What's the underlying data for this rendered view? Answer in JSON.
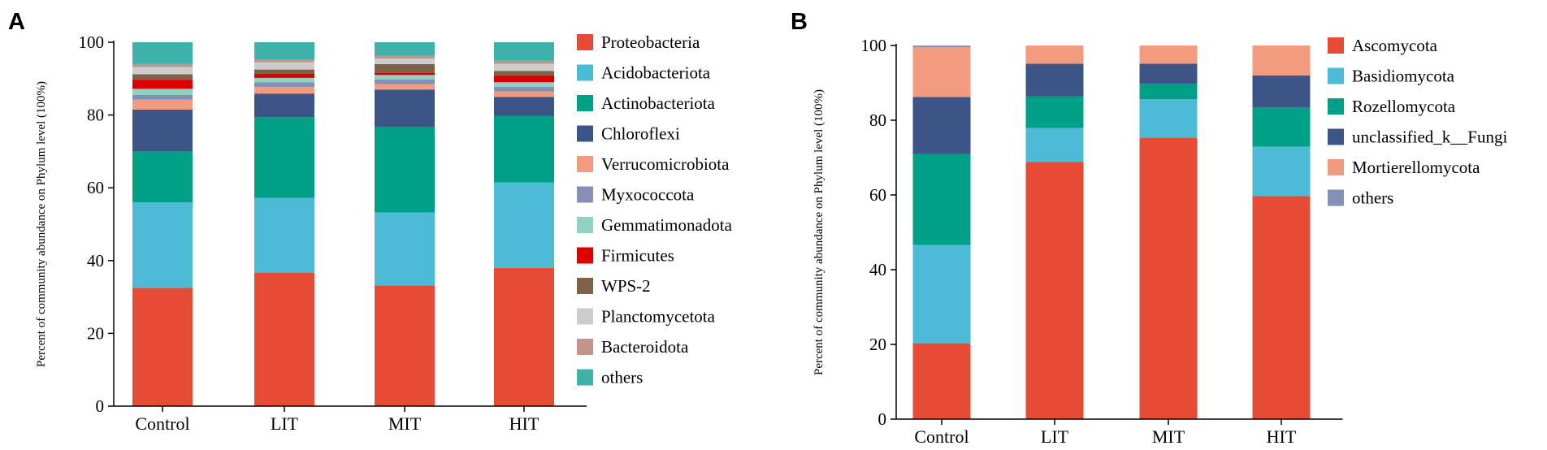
{
  "chart_data": [
    {
      "panel_label": "A",
      "type": "bar",
      "stacked": true,
      "categories": [
        "Control",
        "LIT",
        "MIT",
        "HIT"
      ],
      "ylabel": "Percent of community abundance on Phylum level (100%)",
      "xlabel": "",
      "ylim": [
        0,
        100
      ],
      "yticks": [
        "0",
        "20",
        "40",
        "60",
        "80",
        "100"
      ],
      "legend_position": "right",
      "series": [
        {
          "name": "Proteobacteria",
          "color": "#e64b35",
          "values": [
            32.5,
            36.7,
            33.2,
            38.0
          ]
        },
        {
          "name": "Acidobacteriota",
          "color": "#4dbbd5",
          "values": [
            23.5,
            20.5,
            20.0,
            23.5
          ]
        },
        {
          "name": "Actinobacteriota",
          "color": "#00a087",
          "values": [
            14.0,
            22.2,
            23.5,
            18.3
          ]
        },
        {
          "name": "Chloroflexi",
          "color": "#3c5488",
          "values": [
            11.5,
            6.5,
            10.3,
            5.2
          ]
        },
        {
          "name": "Verrucomicrobiota",
          "color": "#f39b7f",
          "values": [
            2.7,
            1.8,
            1.5,
            1.5
          ]
        },
        {
          "name": "Myxococcota",
          "color": "#8491b4",
          "values": [
            1.3,
            1.3,
            1.3,
            1.3
          ]
        },
        {
          "name": "Gemmatimonadota",
          "color": "#91d1c2",
          "values": [
            1.7,
            1.2,
            1.2,
            1.2
          ]
        },
        {
          "name": "Firmicutes",
          "color": "#dc0000",
          "values": [
            2.5,
            1.1,
            0.6,
            1.9
          ]
        },
        {
          "name": "WPS-2",
          "color": "#7e6148",
          "values": [
            1.5,
            1.2,
            2.4,
            1.2
          ]
        },
        {
          "name": "Planctomycetota",
          "color": "#cccccc",
          "values": [
            2.0,
            2.0,
            1.5,
            2.0
          ]
        },
        {
          "name": "Bacteroidota",
          "color": "#c2948a",
          "values": [
            0.8,
            0.8,
            0.8,
            0.8
          ]
        },
        {
          "name": "others",
          "color": "#3fb1ab",
          "values": [
            6.0,
            4.7,
            3.7,
            5.1
          ]
        }
      ]
    },
    {
      "panel_label": "B",
      "type": "bar",
      "stacked": true,
      "categories": [
        "Control",
        "LIT",
        "MIT",
        "HIT"
      ],
      "ylabel": "Percent of community abundance on Phylum level (100%)",
      "xlabel": "",
      "ylim": [
        0,
        100
      ],
      "yticks": [
        "0",
        "20",
        "40",
        "60",
        "80",
        "100"
      ],
      "legend_position": "right",
      "series": [
        {
          "name": "Ascomycota",
          "color": "#e64b35",
          "values": [
            20.3,
            68.8,
            75.3,
            59.7
          ]
        },
        {
          "name": "Basidiomycota",
          "color": "#4dbbd5",
          "values": [
            26.3,
            9.1,
            10.3,
            13.2
          ]
        },
        {
          "name": "Rozellomycota",
          "color": "#00a087",
          "values": [
            24.3,
            8.5,
            4.2,
            10.5
          ]
        },
        {
          "name": "unclassified_k__Fungi",
          "color": "#3c5488",
          "values": [
            15.3,
            8.7,
            5.3,
            8.6
          ]
        },
        {
          "name": "Mortierellomycota",
          "color": "#f39b7f",
          "values": [
            13.3,
            4.9,
            4.9,
            8.0
          ]
        },
        {
          "name": "others",
          "color": "#8491b4",
          "values": [
            0.5,
            0.0,
            0.0,
            0.0
          ]
        }
      ]
    }
  ]
}
